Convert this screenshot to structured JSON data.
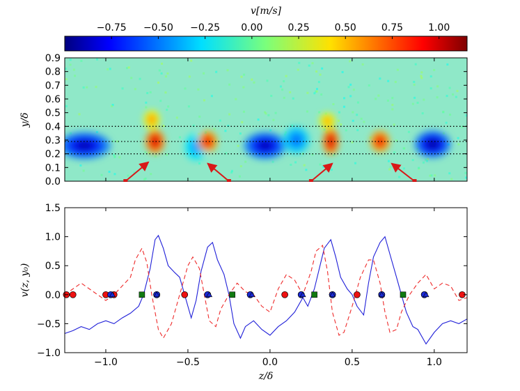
{
  "colors": {
    "solid_line": "#1f1fd8",
    "dashed_line": "#ee2a2a",
    "red_marker": "#ee1111",
    "blue_marker": "#1a2ad6",
    "green_marker": "#117a11",
    "arrow": "#d81818"
  },
  "chart_data": [
    {
      "type": "colorbar",
      "title": "v[m/s]",
      "range": [
        -1.0,
        1.15
      ],
      "ticks": [
        -0.75,
        -0.5,
        -0.25,
        0.0,
        0.25,
        0.5,
        0.75,
        1.0
      ],
      "tick_labels": [
        "−0.75",
        "−0.50",
        "−0.25",
        "0.00",
        "0.25",
        "0.50",
        "0.75",
        "1.00"
      ],
      "colormap": "jet"
    },
    {
      "type": "heatmap",
      "ylabel": "y/δ",
      "xlim": [
        -1.25,
        1.2
      ],
      "ylim": [
        0.0,
        0.9
      ],
      "yticks": [
        0.0,
        0.1,
        0.2,
        0.3,
        0.4,
        0.5,
        0.6,
        0.7,
        0.8,
        0.9
      ],
      "ytick_labels": [
        "0.0",
        "0.1",
        "0.2",
        "0.3",
        "0.4",
        "0.5",
        "0.6",
        "0.7",
        "0.8",
        "0.9"
      ],
      "dotted_lines_y": [
        0.2,
        0.29,
        0.4
      ],
      "blobs": [
        {
          "z": -1.13,
          "y": 0.26,
          "sz": 0.16,
          "sy": 0.1,
          "v": -0.95
        },
        {
          "z": -0.7,
          "y": 0.29,
          "sz": 0.06,
          "sy": 0.09,
          "v": 1.1
        },
        {
          "z": -0.72,
          "y": 0.45,
          "sz": 0.05,
          "sy": 0.07,
          "v": 0.65
        },
        {
          "z": -0.45,
          "y": 0.25,
          "sz": 0.07,
          "sy": 0.1,
          "v": -0.45
        },
        {
          "z": -0.38,
          "y": 0.29,
          "sz": 0.06,
          "sy": 0.08,
          "v": 1.0
        },
        {
          "z": -0.03,
          "y": 0.26,
          "sz": 0.13,
          "sy": 0.1,
          "v": -0.95
        },
        {
          "z": 0.16,
          "y": 0.3,
          "sz": 0.08,
          "sy": 0.1,
          "v": -0.55
        },
        {
          "z": 0.37,
          "y": 0.29,
          "sz": 0.05,
          "sy": 0.1,
          "v": 1.1
        },
        {
          "z": 0.35,
          "y": 0.44,
          "sz": 0.05,
          "sy": 0.06,
          "v": 0.6
        },
        {
          "z": 0.67,
          "y": 0.29,
          "sz": 0.06,
          "sy": 0.08,
          "v": 1.0
        },
        {
          "z": 0.99,
          "y": 0.27,
          "sz": 0.11,
          "sy": 0.1,
          "v": -1.0
        }
      ],
      "arrows": [
        {
          "from": [
            -0.88,
            0.0
          ],
          "to": [
            -0.74,
            0.14
          ]
        },
        {
          "from": [
            -0.25,
            0.0
          ],
          "to": [
            -0.38,
            0.13
          ]
        },
        {
          "from": [
            0.25,
            0.0
          ],
          "to": [
            0.38,
            0.13
          ]
        },
        {
          "from": [
            0.88,
            0.0
          ],
          "to": [
            0.74,
            0.13
          ]
        }
      ]
    },
    {
      "type": "line",
      "xlabel": "z/δ",
      "ylabel": "v(z, y₀)",
      "xlim": [
        -1.25,
        1.2
      ],
      "ylim": [
        -1.0,
        1.5
      ],
      "xticks": [
        -1.0,
        -0.5,
        0.0,
        0.5,
        1.0
      ],
      "xtick_labels": [
        "−1.0",
        "−0.5",
        "0.0",
        "0.5",
        "1.0"
      ],
      "yticks": [
        -1.0,
        -0.5,
        0.0,
        0.5,
        1.0,
        1.5
      ],
      "ytick_labels": [
        "−1.0",
        "−0.5",
        "0.0",
        "0.5",
        "1.0",
        "1.5"
      ],
      "series": [
        {
          "name": "v(z, y0)",
          "style": "solid",
          "x": [
            -1.25,
            -1.2,
            -1.15,
            -1.1,
            -1.05,
            -1.0,
            -0.95,
            -0.9,
            -0.85,
            -0.8,
            -0.77,
            -0.73,
            -0.7,
            -0.68,
            -0.65,
            -0.62,
            -0.58,
            -0.55,
            -0.52,
            -0.48,
            -0.45,
            -0.42,
            -0.38,
            -0.35,
            -0.32,
            -0.28,
            -0.25,
            -0.22,
            -0.18,
            -0.15,
            -0.1,
            -0.05,
            0.0,
            0.05,
            0.1,
            0.15,
            0.2,
            0.23,
            0.27,
            0.3,
            0.33,
            0.37,
            0.4,
            0.43,
            0.47,
            0.5,
            0.53,
            0.57,
            0.6,
            0.63,
            0.67,
            0.7,
            0.73,
            0.77,
            0.8,
            0.83,
            0.87,
            0.9,
            0.95,
            1.0,
            1.05,
            1.1,
            1.15,
            1.2
          ],
          "y": [
            -0.67,
            -0.62,
            -0.55,
            -0.6,
            -0.5,
            -0.45,
            -0.5,
            -0.4,
            -0.32,
            -0.2,
            0.0,
            0.45,
            0.95,
            1.02,
            0.8,
            0.5,
            0.38,
            0.3,
            0.0,
            -0.4,
            -0.1,
            0.4,
            0.82,
            0.9,
            0.6,
            0.35,
            0.0,
            -0.5,
            -0.75,
            -0.55,
            -0.45,
            -0.6,
            -0.7,
            -0.55,
            -0.45,
            -0.3,
            -0.05,
            -0.2,
            0.1,
            0.45,
            0.8,
            0.95,
            0.65,
            0.3,
            0.1,
            0.0,
            -0.2,
            -0.35,
            0.2,
            0.65,
            0.9,
            1.0,
            0.7,
            0.3,
            0.0,
            -0.3,
            -0.55,
            -0.6,
            -0.85,
            -0.65,
            -0.5,
            -0.45,
            -0.5,
            -0.42
          ]
        },
        {
          "name": "dashed",
          "style": "dashed",
          "x": [
            -1.25,
            -1.2,
            -1.15,
            -1.1,
            -1.05,
            -1.0,
            -0.95,
            -0.9,
            -0.85,
            -0.82,
            -0.78,
            -0.75,
            -0.72,
            -0.68,
            -0.65,
            -0.6,
            -0.55,
            -0.5,
            -0.47,
            -0.43,
            -0.4,
            -0.37,
            -0.33,
            -0.3,
            -0.25,
            -0.2,
            -0.15,
            -0.1,
            -0.05,
            0.0,
            0.05,
            0.1,
            0.15,
            0.2,
            0.25,
            0.28,
            0.32,
            0.35,
            0.38,
            0.42,
            0.45,
            0.5,
            0.55,
            0.6,
            0.63,
            0.67,
            0.7,
            0.73,
            0.77,
            0.8,
            0.85,
            0.9,
            0.95,
            1.0,
            1.05,
            1.1,
            1.15,
            1.2
          ],
          "y": [
            0.0,
            0.1,
            0.2,
            0.1,
            0.0,
            -0.1,
            0.0,
            0.15,
            0.3,
            0.6,
            0.8,
            0.55,
            0.0,
            -0.6,
            -0.75,
            -0.5,
            0.0,
            0.5,
            0.65,
            0.45,
            0.0,
            -0.45,
            -0.55,
            -0.25,
            0.0,
            0.2,
            0.05,
            0.0,
            -0.2,
            -0.3,
            0.1,
            0.35,
            0.25,
            0.0,
            0.4,
            0.75,
            0.85,
            0.4,
            -0.3,
            -0.7,
            -0.65,
            -0.2,
            0.3,
            0.6,
            0.6,
            0.2,
            -0.3,
            -0.65,
            -0.6,
            -0.3,
            0.0,
            0.2,
            0.35,
            0.1,
            0.2,
            0.15,
            -0.1,
            -0.05
          ]
        }
      ],
      "markers": {
        "red_circles": [
          -1.24,
          -1.2,
          -1.0,
          -0.95,
          -0.69,
          -0.52,
          -0.38,
          -0.12,
          0.09,
          0.19,
          0.38,
          0.53,
          0.68,
          0.94,
          1.17
        ],
        "blue_circles": [
          -0.97,
          -0.69,
          -0.38,
          -0.12,
          0.19,
          0.38,
          0.68,
          0.94
        ],
        "blue_triangles": [
          -0.96,
          -0.69,
          -0.37,
          -0.11,
          0.2,
          0.38,
          0.68,
          0.95
        ],
        "green_squares": [
          -0.78,
          -0.23,
          0.27,
          0.81
        ]
      }
    }
  ]
}
